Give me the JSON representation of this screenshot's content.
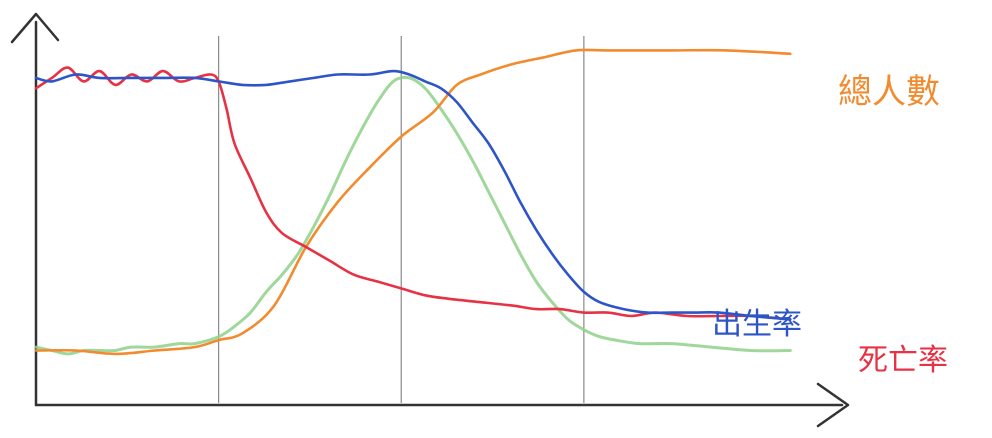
{
  "chart_data": {
    "type": "line",
    "title": "",
    "xlabel": "",
    "ylabel": "",
    "xlim": [
      0,
      100
    ],
    "ylim": [
      0,
      100
    ],
    "grid": "vertical",
    "stage_boundaries": [
      23,
      46,
      69
    ],
    "series": [
      {
        "name": "總人數",
        "color": "#f28a2e",
        "points": [
          [
            0,
            10
          ],
          [
            5,
            10
          ],
          [
            10,
            9
          ],
          [
            15,
            10
          ],
          [
            20,
            11
          ],
          [
            23,
            13
          ],
          [
            26,
            15
          ],
          [
            30,
            23
          ],
          [
            34,
            40
          ],
          [
            38,
            53
          ],
          [
            42,
            63
          ],
          [
            46,
            72
          ],
          [
            50,
            79
          ],
          [
            53,
            87
          ],
          [
            56,
            90
          ],
          [
            60,
            93
          ],
          [
            64,
            95
          ],
          [
            68,
            97
          ],
          [
            72,
            97
          ],
          [
            80,
            97
          ],
          [
            87,
            97
          ],
          [
            95,
            96
          ]
        ]
      },
      {
        "name": "出生率",
        "color": "#2d55c8",
        "points": [
          [
            0,
            89
          ],
          [
            2,
            88
          ],
          [
            5,
            90
          ],
          [
            8,
            89
          ],
          [
            12,
            89
          ],
          [
            16,
            89
          ],
          [
            20,
            89
          ],
          [
            23,
            88
          ],
          [
            26,
            87
          ],
          [
            29,
            87
          ],
          [
            32,
            88
          ],
          [
            35,
            89
          ],
          [
            38,
            90
          ],
          [
            42,
            90
          ],
          [
            45,
            91
          ],
          [
            47,
            90
          ],
          [
            49,
            88
          ],
          [
            51,
            86
          ],
          [
            53,
            82
          ],
          [
            55,
            76
          ],
          [
            57,
            70
          ],
          [
            59,
            62
          ],
          [
            61,
            53
          ],
          [
            63,
            45
          ],
          [
            65,
            38
          ],
          [
            67,
            32
          ],
          [
            69,
            27
          ],
          [
            71,
            24
          ],
          [
            74,
            22
          ],
          [
            77,
            21
          ],
          [
            80,
            21
          ],
          [
            83,
            21
          ],
          [
            86,
            21
          ],
          [
            90,
            20
          ],
          [
            95,
            19
          ]
        ]
      },
      {
        "name": "死亡率",
        "color": "#e63244",
        "points": [
          [
            0,
            86
          ],
          [
            2,
            89
          ],
          [
            4,
            92
          ],
          [
            6,
            88
          ],
          [
            8,
            91
          ],
          [
            10,
            87
          ],
          [
            12,
            90
          ],
          [
            14,
            88
          ],
          [
            16,
            91
          ],
          [
            18,
            88
          ],
          [
            20,
            89
          ],
          [
            22,
            90
          ],
          [
            23,
            88
          ],
          [
            24,
            80
          ],
          [
            25,
            70
          ],
          [
            27,
            60
          ],
          [
            29,
            50
          ],
          [
            31,
            44
          ],
          [
            34,
            40
          ],
          [
            37,
            36
          ],
          [
            40,
            32
          ],
          [
            43,
            30
          ],
          [
            46,
            28
          ],
          [
            49,
            26
          ],
          [
            52,
            25
          ],
          [
            56,
            24
          ],
          [
            60,
            23
          ],
          [
            63,
            22
          ],
          [
            66,
            22
          ],
          [
            69,
            21
          ],
          [
            72,
            21
          ],
          [
            75,
            20
          ],
          [
            78,
            21
          ],
          [
            82,
            20
          ],
          [
            86,
            20
          ],
          [
            90,
            20
          ],
          [
            95,
            19
          ]
        ]
      },
      {
        "name": "",
        "color": "#8fd08a",
        "points": [
          [
            0,
            11
          ],
          [
            2,
            10
          ],
          [
            4,
            9
          ],
          [
            6,
            10
          ],
          [
            8,
            10
          ],
          [
            10,
            10
          ],
          [
            12,
            11
          ],
          [
            15,
            11
          ],
          [
            18,
            12
          ],
          [
            20,
            12
          ],
          [
            23,
            14
          ],
          [
            25,
            17
          ],
          [
            27,
            21
          ],
          [
            29,
            27
          ],
          [
            31,
            32
          ],
          [
            33,
            38
          ],
          [
            35,
            46
          ],
          [
            37,
            55
          ],
          [
            39,
            65
          ],
          [
            41,
            74
          ],
          [
            43,
            82
          ],
          [
            45,
            88
          ],
          [
            47,
            89
          ],
          [
            49,
            86
          ],
          [
            51,
            80
          ],
          [
            53,
            73
          ],
          [
            55,
            65
          ],
          [
            57,
            56
          ],
          [
            59,
            47
          ],
          [
            61,
            38
          ],
          [
            63,
            30
          ],
          [
            65,
            24
          ],
          [
            67,
            19
          ],
          [
            69,
            16
          ],
          [
            71,
            14
          ],
          [
            73,
            13
          ],
          [
            76,
            12
          ],
          [
            80,
            12
          ],
          [
            85,
            11
          ],
          [
            90,
            10
          ],
          [
            95,
            10
          ]
        ]
      }
    ]
  }
}
